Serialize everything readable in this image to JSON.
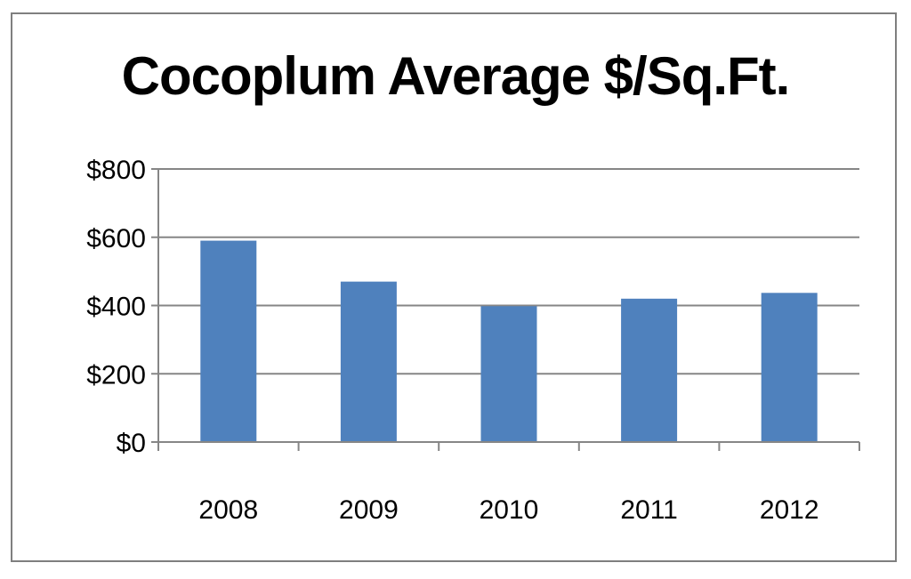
{
  "chart_data": {
    "type": "bar",
    "title": "Cocoplum Average $/Sq.Ft.",
    "categories": [
      "2008",
      "2009",
      "2010",
      "2011",
      "2012"
    ],
    "values": [
      590,
      470,
      398,
      420,
      437
    ],
    "ylim": [
      0,
      800
    ],
    "yticks": [
      0,
      200,
      400,
      600,
      800
    ],
    "ytick_labels": [
      "$0",
      "$200",
      "$400",
      "$600",
      "$800"
    ],
    "xlabel": "",
    "ylabel": "",
    "grid": true,
    "legend": "none",
    "colors": {
      "bar": "#4f81bd",
      "grid": "#868686",
      "axis": "#868686",
      "frame": "#7f7f7f"
    }
  }
}
